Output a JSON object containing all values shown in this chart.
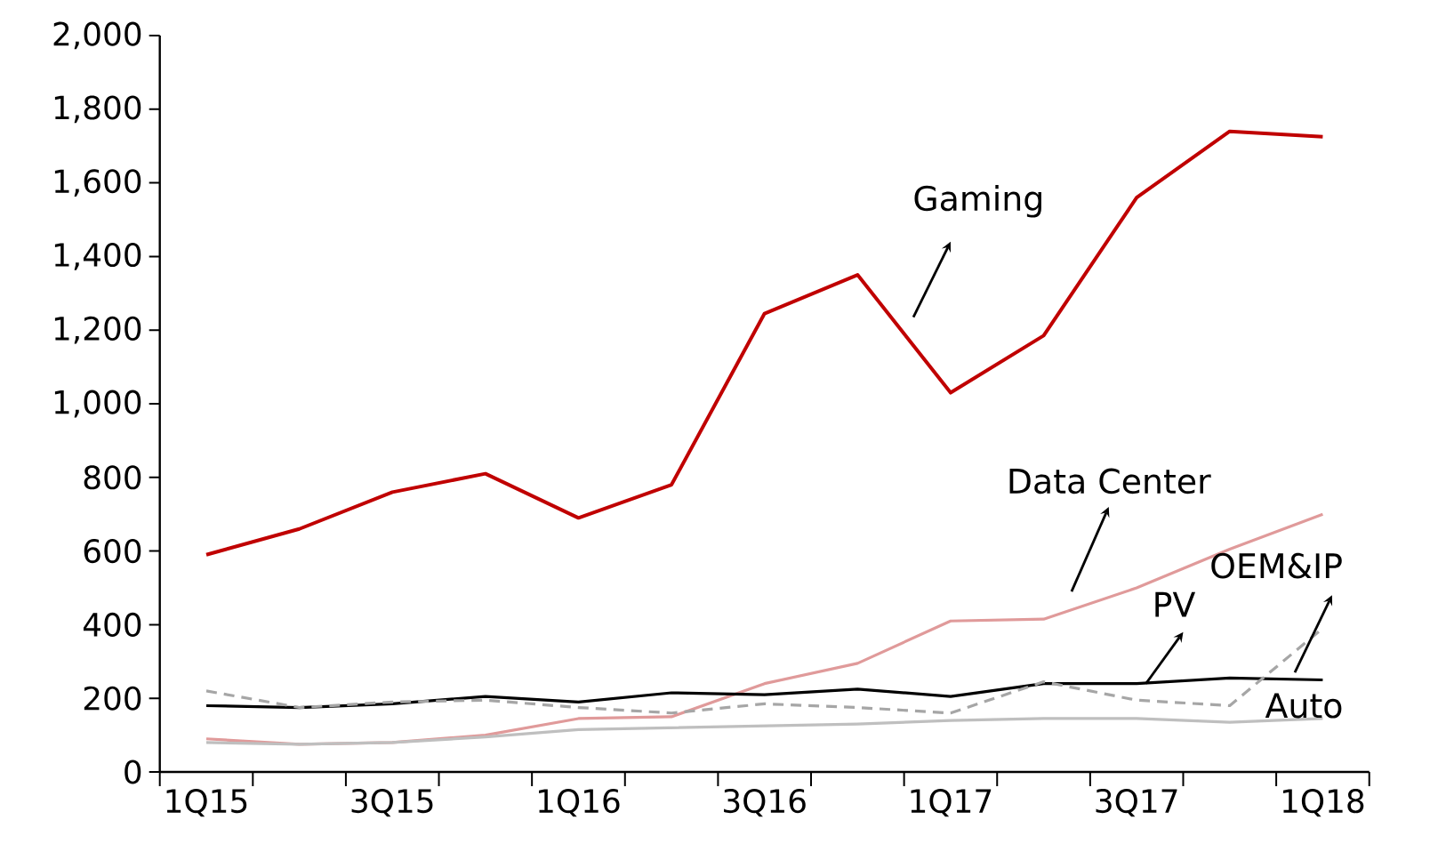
{
  "chart_data": {
    "type": "line",
    "categories": [
      "1Q15",
      null,
      "3Q15",
      null,
      "1Q16",
      null,
      "3Q16",
      null,
      "1Q17",
      null,
      "3Q17",
      null,
      "1Q18"
    ],
    "series": [
      {
        "name": "Gaming",
        "color": "#c00000",
        "values": [
          590,
          660,
          760,
          810,
          690,
          780,
          1245,
          1350,
          1030,
          1185,
          1560,
          1740,
          1725
        ]
      },
      {
        "name": "Data Center",
        "color": "#e09a9a",
        "values": [
          90,
          75,
          80,
          100,
          145,
          150,
          240,
          295,
          410,
          415,
          500,
          605,
          700
        ]
      },
      {
        "name": "PV",
        "color": "#000000",
        "values": [
          180,
          175,
          185,
          205,
          190,
          215,
          210,
          225,
          205,
          240,
          240,
          255,
          250
        ]
      },
      {
        "name": "OEM&IP",
        "color": "#a6a6a6",
        "line_style": "dashed",
        "values": [
          220,
          175,
          190,
          195,
          175,
          160,
          185,
          175,
          160,
          245,
          195,
          180,
          390
        ]
      },
      {
        "name": "Auto",
        "color": "#bfbfbf",
        "values": [
          80,
          75,
          80,
          95,
          115,
          120,
          125,
          130,
          140,
          145,
          145,
          135,
          145
        ]
      }
    ],
    "ylim": [
      0,
      2000
    ],
    "yticks": [
      0,
      200,
      400,
      600,
      800,
      {
        "value": 1000,
        "label": "1,000"
      },
      {
        "value": 1200,
        "label": "1,200"
      },
      {
        "value": 1400,
        "label": "1,400"
      },
      {
        "value": 1600,
        "label": "1,600"
      },
      {
        "value": 1800,
        "label": "1,800"
      },
      {
        "value": 2000,
        "label": "2,000"
      }
    ],
    "grid": false,
    "marker": "none"
  }
}
